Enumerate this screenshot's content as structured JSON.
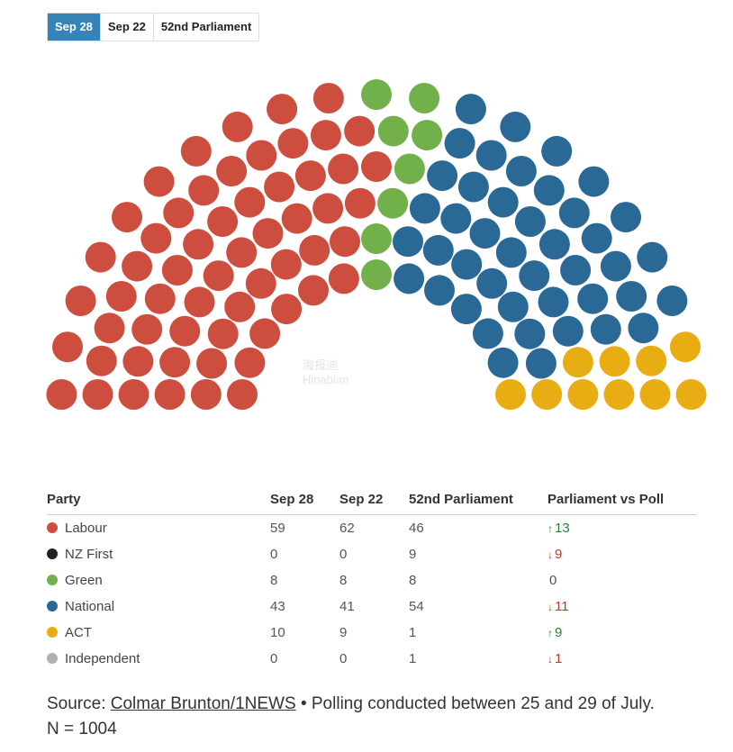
{
  "tabs": [
    {
      "label": "Sep 28",
      "active": true
    },
    {
      "label": "Sep 22",
      "active": false
    },
    {
      "label": "52nd Parliament",
      "active": false
    }
  ],
  "colors": {
    "Labour": "#cd4e3f",
    "NZ First": "#222222",
    "Green": "#71b04a",
    "National": "#2a6996",
    "ACT": "#e8ad12",
    "Independent": "#b0b0b0",
    "tab_active": "#3583b7",
    "increase": "#2e7d3a",
    "decrease": "#c0392b"
  },
  "chart_data": {
    "type": "parliament",
    "total_seats": 120,
    "seat_order": [
      "Labour",
      "Green",
      "National",
      "ACT"
    ],
    "seats": {
      "Labour": 59,
      "Green": 8,
      "National": 43,
      "ACT": 10
    }
  },
  "table": {
    "headers": {
      "party": "Party",
      "sep28": "Sep 28",
      "sep22": "Sep 22",
      "parl52": "52nd Parliament",
      "diff": "Parliament vs Poll"
    },
    "rows": [
      {
        "party": "Labour",
        "sep28": "59",
        "sep22": "62",
        "parl52": "46",
        "change": "13",
        "direction": "up"
      },
      {
        "party": "NZ First",
        "sep28": "0",
        "sep22": "0",
        "parl52": "9",
        "change": "9",
        "direction": "down"
      },
      {
        "party": "Green",
        "sep28": "8",
        "sep22": "8",
        "parl52": "8",
        "change": "0",
        "direction": "none"
      },
      {
        "party": "National",
        "sep28": "43",
        "sep22": "41",
        "parl52": "54",
        "change": "11",
        "direction": "down"
      },
      {
        "party": "ACT",
        "sep28": "10",
        "sep22": "9",
        "parl52": "1",
        "change": "9",
        "direction": "up"
      },
      {
        "party": "Independent",
        "sep28": "0",
        "sep22": "0",
        "parl52": "1",
        "change": "1",
        "direction": "down"
      }
    ]
  },
  "source": {
    "prefix": "Source: ",
    "link_text": "Colmar Brunton/1NEWS",
    "suffix": " • Polling conducted between 25 and 29 of July.",
    "sample": "N = 1004"
  },
  "watermark": {
    "line1": "海报迪",
    "line2": "Hinabian"
  }
}
